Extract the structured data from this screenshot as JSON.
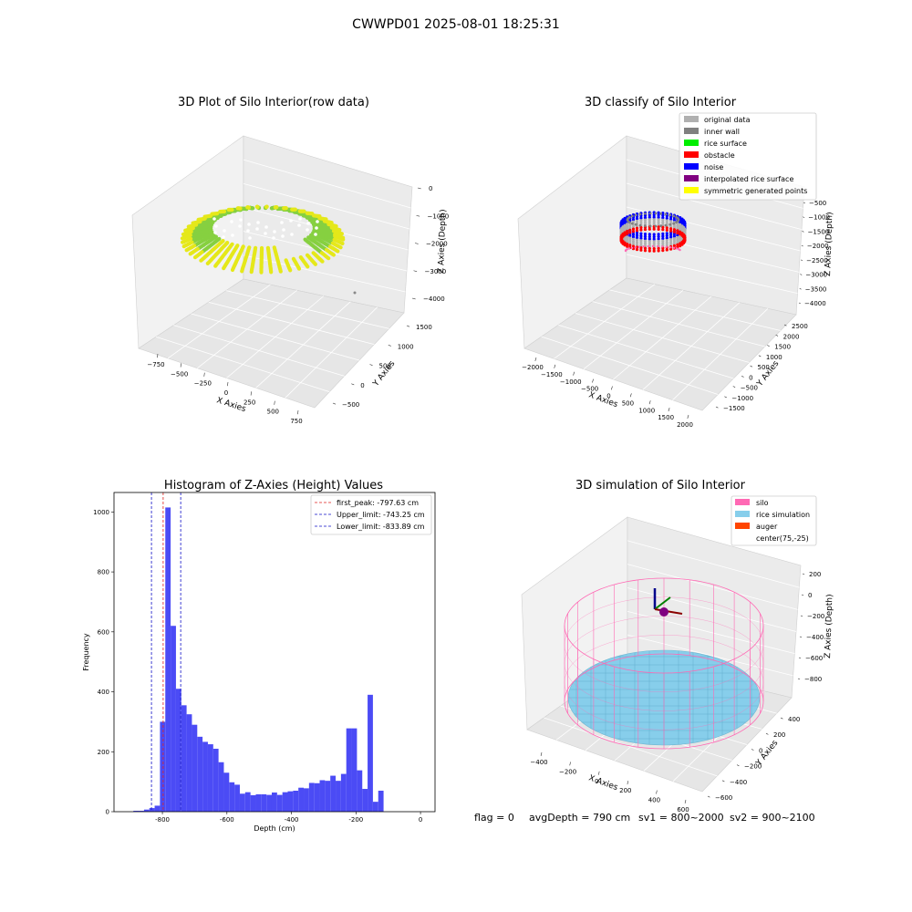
{
  "figure": {
    "suptitle": "CWWPD01 2025-08-01 18:25:31",
    "footer": {
      "flag": "flag = 0",
      "avg_depth": "avgDepth = 790 cm",
      "sv1": "sv1 = 800~2000",
      "sv2": "sv2 = 900~2100"
    }
  },
  "colors": {
    "hist_bar": "#4b4bf5",
    "peak_line": "#e0201c",
    "limit_line": "#1010c8",
    "rice_yellow": "#e5e81a",
    "rice_green": "#86d040",
    "silo": "#ff69b4",
    "rice_sim": "#87ceeb",
    "auger": "#ff4500",
    "noise": "#0000ff",
    "original": "#b0b0b0",
    "inner_wall": "#808080",
    "rice_surface": "#00ee00",
    "obstacle": "#ff0000",
    "interp": "#800080",
    "symmetric": "#ffff00"
  },
  "chart_data": [
    {
      "type": "scatter",
      "title": "3D Plot of Silo Interior(row data)",
      "xlabel": "X Axies",
      "ylabel": "Y Axies",
      "zlabel": "Z Axies (Depth)",
      "x_ticks": [
        "−750",
        "−500",
        "−250",
        "0",
        "250",
        "500",
        "750"
      ],
      "y_ticks": [
        "−500",
        "0",
        "500",
        "1000",
        "1500"
      ],
      "z_ticks": [
        "0",
        "−1000",
        "−2000",
        "−3000",
        "−4000"
      ],
      "xlim": [
        -900,
        850
      ],
      "ylim": [
        -700,
        1600
      ],
      "zlim": [
        -4300,
        200
      ]
    },
    {
      "type": "scatter",
      "title": "3D classify of Silo Interior",
      "xlabel": "X Axies",
      "ylabel": "Y Axies",
      "zlabel": "Z Axies (Depth)",
      "x_ticks": [
        "−2000",
        "−1500",
        "−1000",
        "−500",
        "0",
        "500",
        "1000",
        "1500",
        "2000"
      ],
      "y_ticks": [
        "−1500",
        "−1000",
        "−500",
        "0",
        "500",
        "1000",
        "1500",
        "2000",
        "2500"
      ],
      "z_ticks": [
        "−500",
        "−1000",
        "−1500",
        "−2000",
        "−2500",
        "−3000",
        "−3500",
        "−4000"
      ],
      "legend": [
        {
          "label": "original data",
          "color": "#b0b0b0"
        },
        {
          "label": "inner wall",
          "color": "#808080"
        },
        {
          "label": "rice surface",
          "color": "#00ee00"
        },
        {
          "label": "obstacle",
          "color": "#ff0000"
        },
        {
          "label": "noise",
          "color": "#0000ff"
        },
        {
          "label": "interpolated rice surface",
          "color": "#800080"
        },
        {
          "label": "symmetric generated points",
          "color": "#ffff00"
        }
      ],
      "legend_position": "top-right"
    },
    {
      "type": "bar",
      "title": "Histogram of Z-Axies (Height) Values",
      "xlabel": "Depth (cm)",
      "ylabel": "Frequency",
      "x_ticks": [
        -800,
        -600,
        -400,
        -200,
        0
      ],
      "y_ticks": [
        0,
        200,
        400,
        600,
        800,
        1000
      ],
      "xlim": [
        -950,
        45
      ],
      "ylim": [
        0,
        1065
      ],
      "bin_edges_start": -890,
      "bin_width": 16.5,
      "values": [
        3,
        3,
        7,
        12,
        20,
        300,
        1015,
        620,
        410,
        355,
        325,
        290,
        250,
        233,
        225,
        210,
        165,
        130,
        98,
        90,
        60,
        65,
        55,
        58,
        58,
        56,
        64,
        56,
        65,
        68,
        70,
        80,
        78,
        96,
        95,
        105,
        103,
        120,
        103,
        126,
        278,
        278,
        138,
        76,
        390,
        33,
        70
      ],
      "vlines": [
        {
          "label": "first_peak: -797.63 cm",
          "x": -797.63,
          "style": "peak"
        },
        {
          "label": "Upper_limit: -743.25 cm",
          "x": -743.25,
          "style": "limit"
        },
        {
          "label": "Lower_limit: -833.89 cm",
          "x": -833.89,
          "style": "limit"
        }
      ],
      "legend_position": "top-right"
    },
    {
      "type": "scatter",
      "title": "3D simulation of Silo Interior",
      "xlabel": "X Axies",
      "ylabel": "Y Axies",
      "zlabel": "Z Axies (Depth)",
      "x_ticks": [
        "−400",
        "−200",
        "0",
        "200",
        "400",
        "600"
      ],
      "y_ticks": [
        "−600",
        "−400",
        "−200",
        "0",
        "200",
        "400"
      ],
      "z_ticks": [
        "200",
        "0",
        "−200",
        "−400",
        "−600",
        "−800"
      ],
      "legend": [
        {
          "label": "silo",
          "color": "#ff69b4"
        },
        {
          "label": "rice simulation",
          "color": "#87ceeb"
        },
        {
          "label": "auger",
          "color": "#ff4500"
        },
        {
          "label": "center(75,-25)",
          "color": ""
        }
      ],
      "legend_position": "top-right"
    }
  ]
}
